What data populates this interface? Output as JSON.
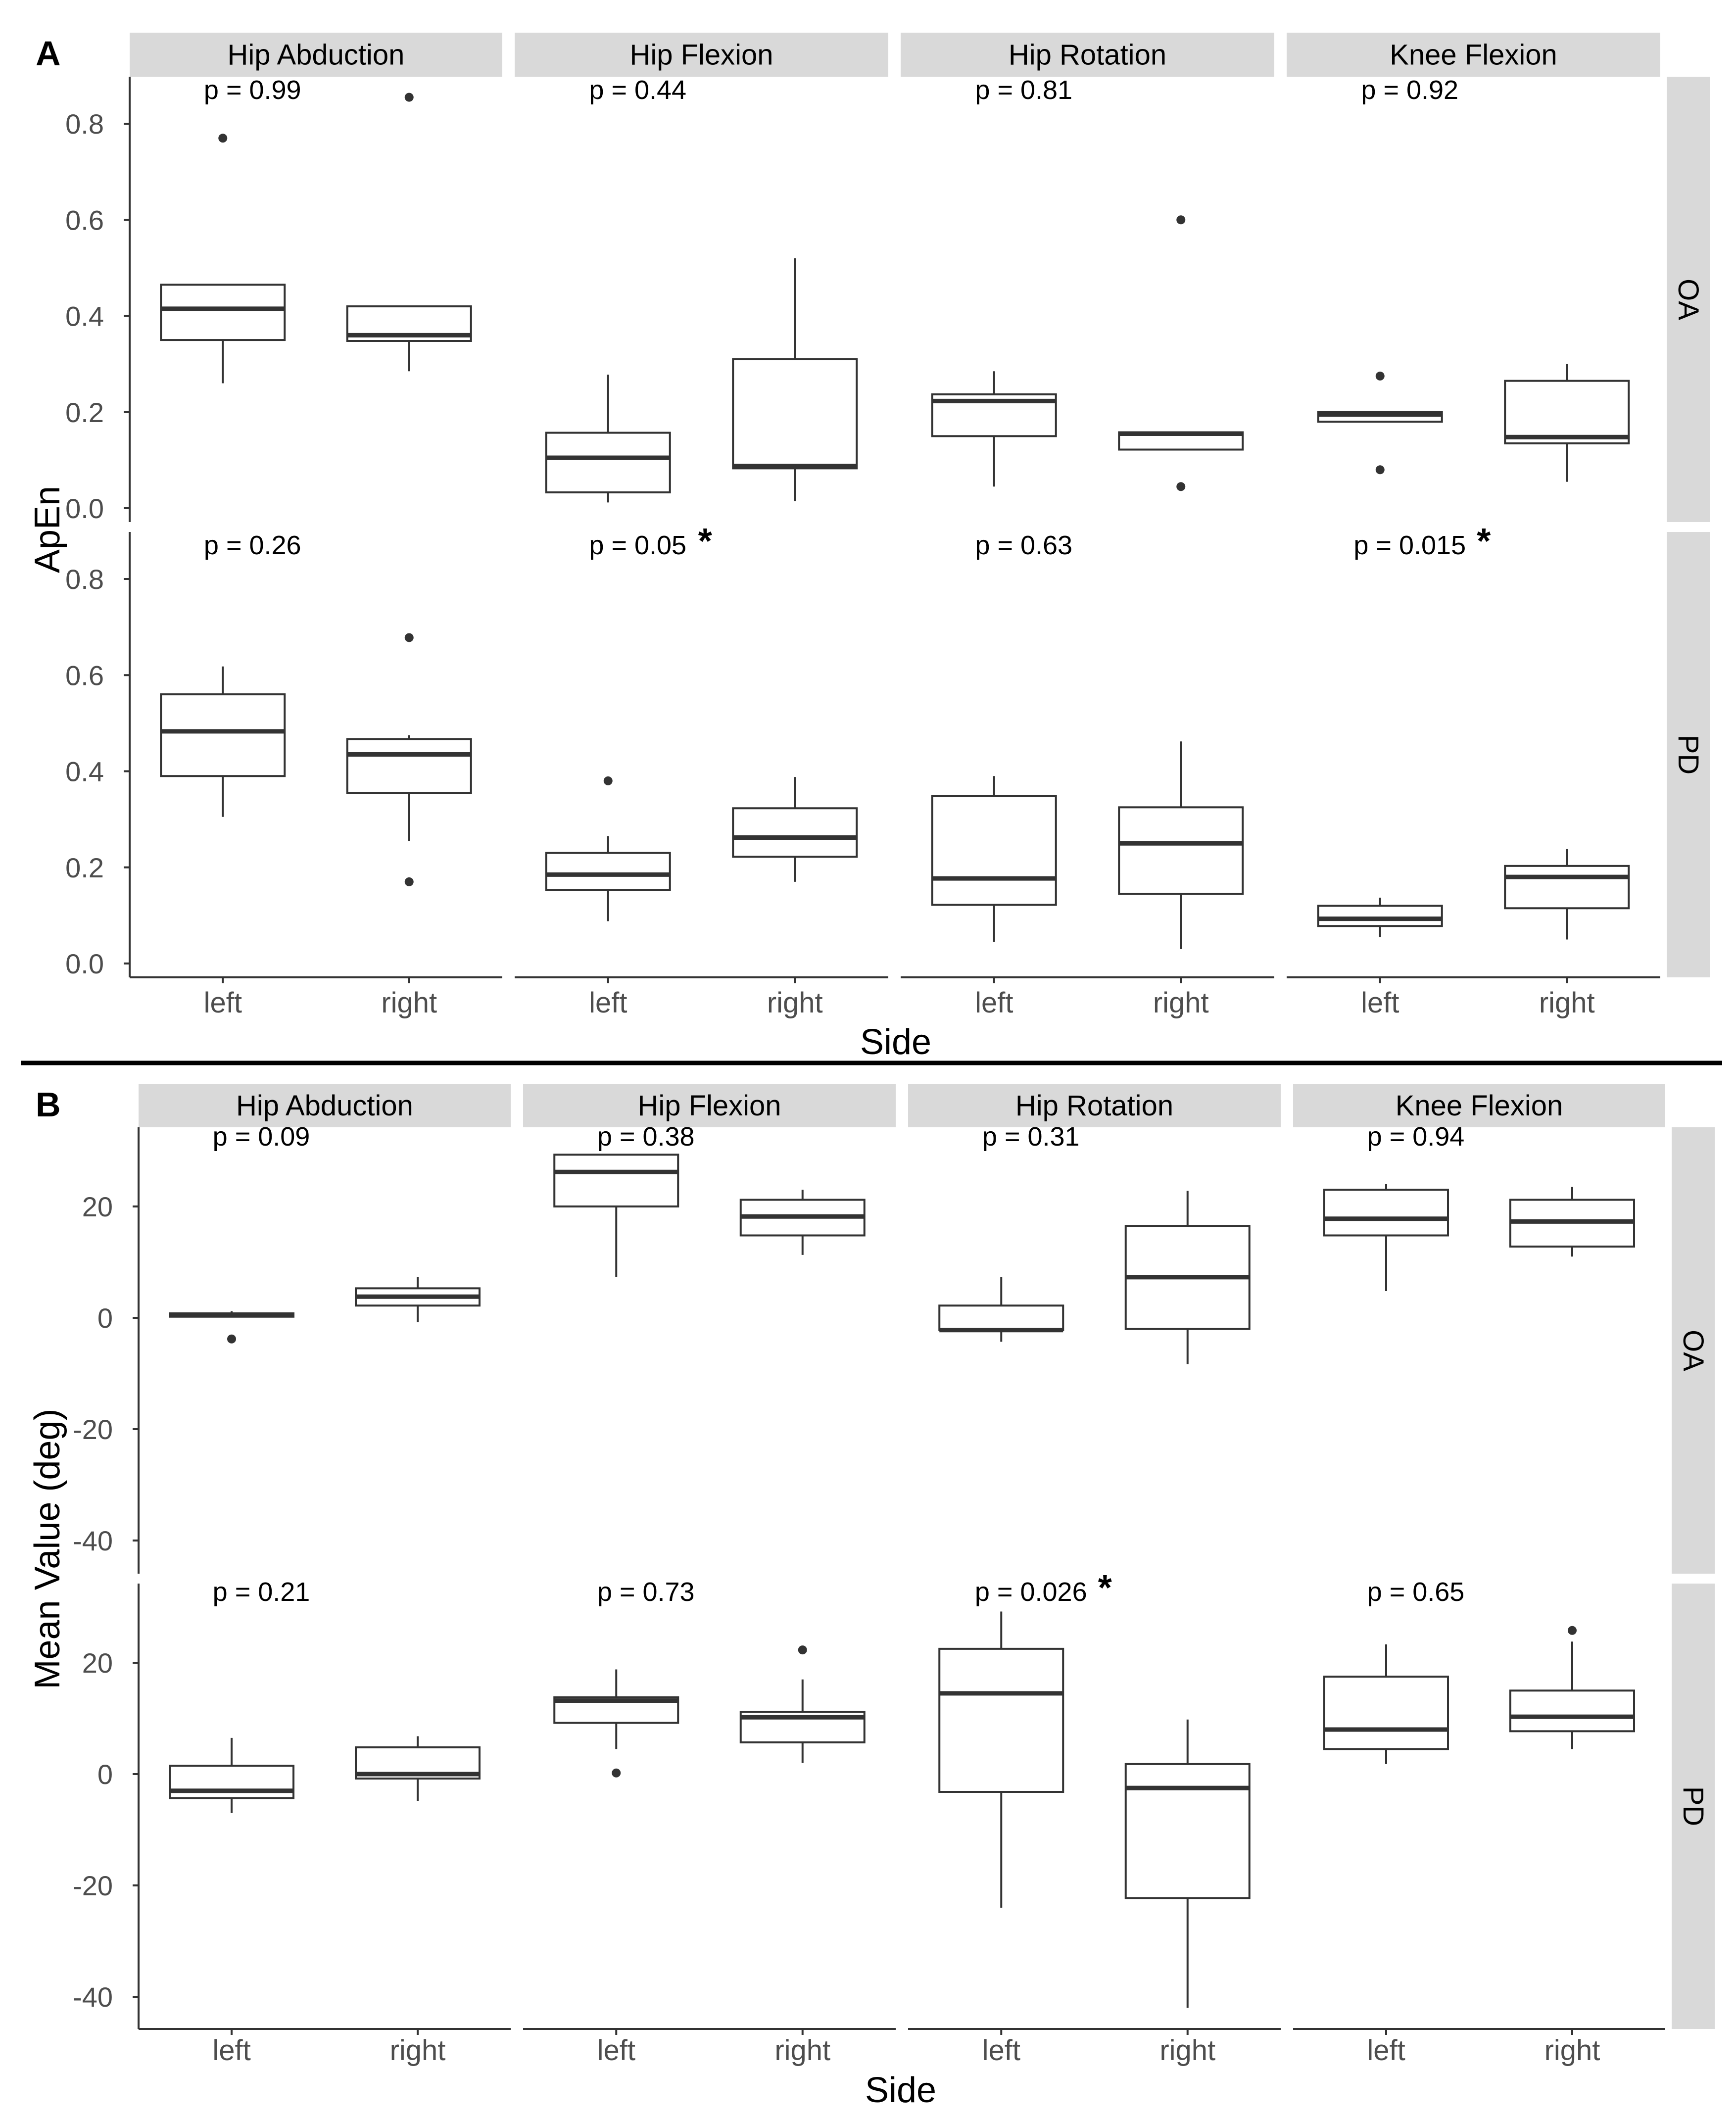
{
  "colors": {
    "strip": "#d9d9d9",
    "axis": "#333333",
    "box_line": "#333333",
    "median": "#333333",
    "text": "#000000",
    "tick_text": "#4d4d4d",
    "divider": "#000000",
    "background": "#ffffff"
  },
  "chart_data": [
    {
      "type": "boxplot",
      "panel_label": "A",
      "xlabel": "Side",
      "ylabel": "ApEn",
      "ylim": [
        0,
        0.9
      ],
      "yticks": [
        0,
        0.2,
        0.4,
        0.6,
        0.8
      ],
      "yticklabels": [
        "0.0",
        "0.2",
        "0.4",
        "0.6",
        "0.8"
      ],
      "columns": [
        "Hip Abduction",
        "Hip Flexion",
        "Hip Rotation",
        "Knee Flexion"
      ],
      "rows": [
        "OA",
        "PD"
      ],
      "categories": [
        "left",
        "right"
      ],
      "facets": [
        {
          "column": "Hip Abduction",
          "row": "OA",
          "p_label": "p = 0.99",
          "star": "",
          "boxes": [
            {
              "side": "left",
              "lower_whisker": 0.26,
              "q1": 0.35,
              "median": 0.415,
              "q3": 0.465,
              "upper_whisker": 0.465,
              "outliers": [
                0.77
              ]
            },
            {
              "side": "right",
              "lower_whisker": 0.285,
              "q1": 0.348,
              "median": 0.36,
              "q3": 0.42,
              "upper_whisker": 0.42,
              "outliers": [
                0.855
              ]
            }
          ]
        },
        {
          "column": "Hip Flexion",
          "row": "OA",
          "p_label": "p = 0.44",
          "star": "",
          "boxes": [
            {
              "side": "left",
              "lower_whisker": 0.012,
              "q1": 0.033,
              "median": 0.105,
              "q3": 0.157,
              "upper_whisker": 0.278,
              "outliers": []
            },
            {
              "side": "right",
              "lower_whisker": 0.015,
              "q1": 0.083,
              "median": 0.088,
              "q3": 0.31,
              "upper_whisker": 0.52,
              "outliers": []
            }
          ]
        },
        {
          "column": "Hip Rotation",
          "row": "OA",
          "p_label": "p = 0.81",
          "star": "",
          "boxes": [
            {
              "side": "left",
              "lower_whisker": 0.045,
              "q1": 0.15,
              "median": 0.223,
              "q3": 0.237,
              "upper_whisker": 0.285,
              "outliers": []
            },
            {
              "side": "right",
              "lower_whisker": 0.122,
              "q1": 0.122,
              "median": 0.155,
              "q3": 0.158,
              "upper_whisker": 0.158,
              "outliers": [
                0.6,
                0.045
              ]
            }
          ]
        },
        {
          "column": "Knee Flexion",
          "row": "OA",
          "p_label": "p = 0.92",
          "star": "",
          "boxes": [
            {
              "side": "left",
              "lower_whisker": 0.18,
              "q1": 0.18,
              "median": 0.195,
              "q3": 0.2,
              "upper_whisker": 0.2,
              "outliers": [
                0.275,
                0.08
              ]
            },
            {
              "side": "right",
              "lower_whisker": 0.055,
              "q1": 0.135,
              "median": 0.148,
              "q3": 0.265,
              "upper_whisker": 0.3,
              "outliers": []
            }
          ]
        },
        {
          "column": "Hip Abduction",
          "row": "PD",
          "p_label": "p = 0.26",
          "star": "",
          "boxes": [
            {
              "side": "left",
              "lower_whisker": 0.305,
              "q1": 0.39,
              "median": 0.483,
              "q3": 0.56,
              "upper_whisker": 0.618,
              "outliers": []
            },
            {
              "side": "right",
              "lower_whisker": 0.255,
              "q1": 0.355,
              "median": 0.435,
              "q3": 0.467,
              "upper_whisker": 0.475,
              "outliers": [
                0.678,
                0.17
              ]
            }
          ]
        },
        {
          "column": "Hip Flexion",
          "row": "PD",
          "p_label": "p = 0.05",
          "star": "*",
          "boxes": [
            {
              "side": "left",
              "lower_whisker": 0.088,
              "q1": 0.153,
              "median": 0.185,
              "q3": 0.23,
              "upper_whisker": 0.265,
              "outliers": [
                0.38
              ]
            },
            {
              "side": "right",
              "lower_whisker": 0.17,
              "q1": 0.222,
              "median": 0.262,
              "q3": 0.323,
              "upper_whisker": 0.388,
              "outliers": []
            }
          ]
        },
        {
          "column": "Hip Rotation",
          "row": "PD",
          "p_label": "p = 0.63",
          "star": "",
          "boxes": [
            {
              "side": "left",
              "lower_whisker": 0.045,
              "q1": 0.122,
              "median": 0.177,
              "q3": 0.348,
              "upper_whisker": 0.39,
              "outliers": []
            },
            {
              "side": "right",
              "lower_whisker": 0.03,
              "q1": 0.145,
              "median": 0.25,
              "q3": 0.325,
              "upper_whisker": 0.462,
              "outliers": []
            }
          ]
        },
        {
          "column": "Knee Flexion",
          "row": "PD",
          "p_label": "p = 0.015",
          "star": "*",
          "boxes": [
            {
              "side": "left",
              "lower_whisker": 0.055,
              "q1": 0.078,
              "median": 0.093,
              "q3": 0.12,
              "upper_whisker": 0.137,
              "outliers": []
            },
            {
              "side": "right",
              "lower_whisker": 0.05,
              "q1": 0.115,
              "median": 0.18,
              "q3": 0.203,
              "upper_whisker": 0.238,
              "outliers": []
            }
          ]
        }
      ]
    },
    {
      "type": "boxplot",
      "panel_label": "B",
      "xlabel": "Side",
      "ylabel": "Mean Value (deg)",
      "ylim": [
        -45,
        33
      ],
      "yticks": [
        -40,
        -20,
        0,
        20
      ],
      "yticklabels": [
        "-40",
        "-20",
        "0",
        "20"
      ],
      "columns": [
        "Hip Abduction",
        "Hip Flexion",
        "Hip Rotation",
        "Knee Flexion"
      ],
      "rows": [
        "OA",
        "PD"
      ],
      "categories": [
        "left",
        "right"
      ],
      "facets": [
        {
          "column": "Hip Abduction",
          "row": "OA",
          "p_label": "p = 0.09",
          "star": "",
          "boxes": [
            {
              "side": "left",
              "lower_whisker": 0.2,
              "q1": 0.2,
              "median": 0.5,
              "q3": 0.8,
              "upper_whisker": 1.2,
              "outliers": [
                -3.8
              ]
            },
            {
              "side": "right",
              "lower_whisker": -0.8,
              "q1": 2.2,
              "median": 3.8,
              "q3": 5.3,
              "upper_whisker": 7.3,
              "outliers": []
            }
          ]
        },
        {
          "column": "Hip Flexion",
          "row": "OA",
          "p_label": "p = 0.38",
          "star": "",
          "boxes": [
            {
              "side": "left",
              "lower_whisker": 7.3,
              "q1": 20.0,
              "median": 26.2,
              "q3": 29.3,
              "upper_whisker": 29.3,
              "outliers": []
            },
            {
              "side": "right",
              "lower_whisker": 11.3,
              "q1": 14.8,
              "median": 18.2,
              "q3": 21.2,
              "upper_whisker": 23.0,
              "outliers": []
            }
          ]
        },
        {
          "column": "Hip Rotation",
          "row": "OA",
          "p_label": "p = 0.31",
          "star": "",
          "boxes": [
            {
              "side": "left",
              "lower_whisker": -4.3,
              "q1": -2.2,
              "median": -2.2,
              "q3": 2.2,
              "upper_whisker": 7.3,
              "outliers": []
            },
            {
              "side": "right",
              "lower_whisker": -8.3,
              "q1": -2.0,
              "median": 7.3,
              "q3": 16.5,
              "upper_whisker": 22.8,
              "outliers": []
            }
          ]
        },
        {
          "column": "Knee Flexion",
          "row": "OA",
          "p_label": "p = 0.94",
          "star": "",
          "boxes": [
            {
              "side": "left",
              "lower_whisker": 4.8,
              "q1": 14.8,
              "median": 17.8,
              "q3": 23.0,
              "upper_whisker": 24.0,
              "outliers": []
            },
            {
              "side": "right",
              "lower_whisker": 11.0,
              "q1": 12.8,
              "median": 17.3,
              "q3": 21.2,
              "upper_whisker": 23.5,
              "outliers": []
            }
          ]
        },
        {
          "column": "Hip Abduction",
          "row": "PD",
          "p_label": "p = 0.21",
          "star": "",
          "boxes": [
            {
              "side": "left",
              "lower_whisker": -7.0,
              "q1": -4.3,
              "median": -3.0,
              "q3": 1.5,
              "upper_whisker": 6.5,
              "outliers": []
            },
            {
              "side": "right",
              "lower_whisker": -4.8,
              "q1": -0.8,
              "median": 0.0,
              "q3": 4.8,
              "upper_whisker": 6.8,
              "outliers": []
            }
          ]
        },
        {
          "column": "Hip Flexion",
          "row": "PD",
          "p_label": "p = 0.73",
          "star": "",
          "boxes": [
            {
              "side": "left",
              "lower_whisker": 4.5,
              "q1": 9.2,
              "median": 13.2,
              "q3": 13.8,
              "upper_whisker": 18.8,
              "outliers": [
                0.2
              ]
            },
            {
              "side": "right",
              "lower_whisker": 2.0,
              "q1": 5.7,
              "median": 10.2,
              "q3": 11.2,
              "upper_whisker": 17.0,
              "outliers": [
                22.3
              ]
            }
          ]
        },
        {
          "column": "Hip Rotation",
          "row": "PD",
          "p_label": "p = 0.026",
          "star": "*",
          "boxes": [
            {
              "side": "left",
              "lower_whisker": -24.0,
              "q1": -3.2,
              "median": 14.5,
              "q3": 22.5,
              "upper_whisker": 29.2,
              "outliers": []
            },
            {
              "side": "right",
              "lower_whisker": -42.0,
              "q1": -22.3,
              "median": -2.5,
              "q3": 1.8,
              "upper_whisker": 9.8,
              "outliers": []
            }
          ]
        },
        {
          "column": "Knee Flexion",
          "row": "PD",
          "p_label": "p = 0.65",
          "star": "",
          "boxes": [
            {
              "side": "left",
              "lower_whisker": 1.8,
              "q1": 4.5,
              "median": 8.0,
              "q3": 17.5,
              "upper_whisker": 23.3,
              "outliers": []
            },
            {
              "side": "right",
              "lower_whisker": 4.5,
              "q1": 7.7,
              "median": 10.3,
              "q3": 15.0,
              "upper_whisker": 23.8,
              "outliers": [
                25.8
              ]
            }
          ]
        }
      ]
    }
  ]
}
